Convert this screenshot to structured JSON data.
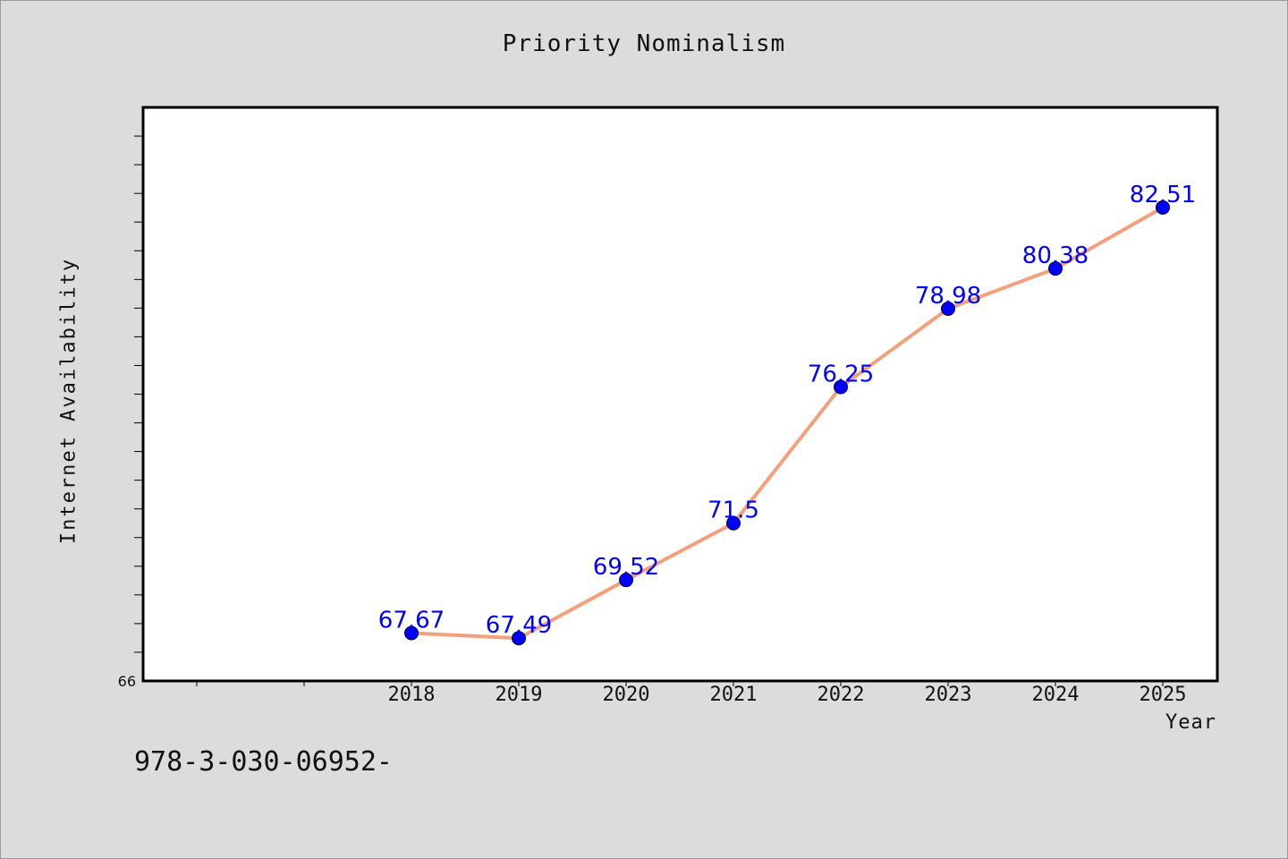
{
  "chart_data": {
    "type": "line",
    "title": "Priority Nominalism",
    "xlabel": "Year",
    "ylabel": "Internet Availability",
    "x": [
      "2018",
      "2019",
      "2020",
      "2021",
      "2022",
      "2023",
      "2024",
      "2025"
    ],
    "series": [
      {
        "values": [
          67.67,
          67.49,
          69.52,
          71.5,
          76.25,
          78.98,
          80.38,
          82.51
        ]
      }
    ],
    "data_labels": [
      "67.67",
      "67.49",
      "69.52",
      "71.5",
      "76.25",
      "78.98",
      "80.38",
      "82.51"
    ],
    "ylim": [
      66,
      86
    ],
    "y_tick_labels": [
      "66"
    ],
    "grid": false,
    "line_color": "#f4a07a",
    "marker_color": "#0000ff",
    "label_color": "#0000ff"
  },
  "footer": {
    "code": "978-3-030-06952-"
  }
}
